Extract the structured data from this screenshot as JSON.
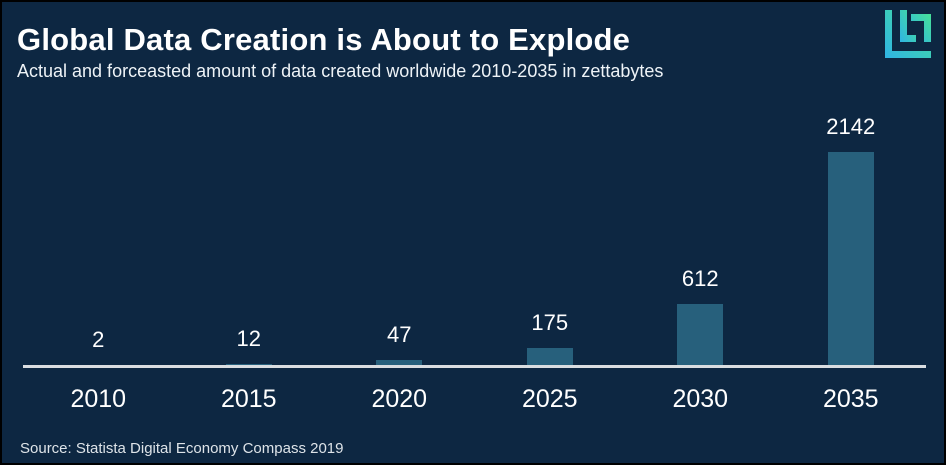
{
  "header": {
    "title": "Global Data Creation is About to Explode",
    "subtitle": "Actual and forceasted amount of data created worldwide 2010-2035 in zettabytes"
  },
  "logo": {
    "icon": "lucid-logo-icon",
    "gradient_start": "#2fb4e4",
    "gradient_end": "#47e297"
  },
  "chart_data": {
    "type": "bar",
    "categories": [
      "2010",
      "2015",
      "2020",
      "2025",
      "2030",
      "2035"
    ],
    "values": [
      2,
      12,
      47,
      175,
      612,
      2142
    ],
    "title": "Global Data Creation is About to Explode",
    "subtitle": "Actual and forceasted amount of data created worldwide 2010-2035 in zettabytes",
    "unit": "zettabytes",
    "xlabel": "",
    "ylabel": "",
    "ylim": [
      0,
      2142
    ],
    "gridlines": false,
    "legend": "none",
    "value_labels_shown": true,
    "bar_color": "#27607c",
    "background_color": "#0d2742",
    "axis_line_color": "#d9dde1",
    "text_color": "#ffffff"
  },
  "footer": {
    "source": "Source: Statista Digital Economy Compass 2019"
  }
}
